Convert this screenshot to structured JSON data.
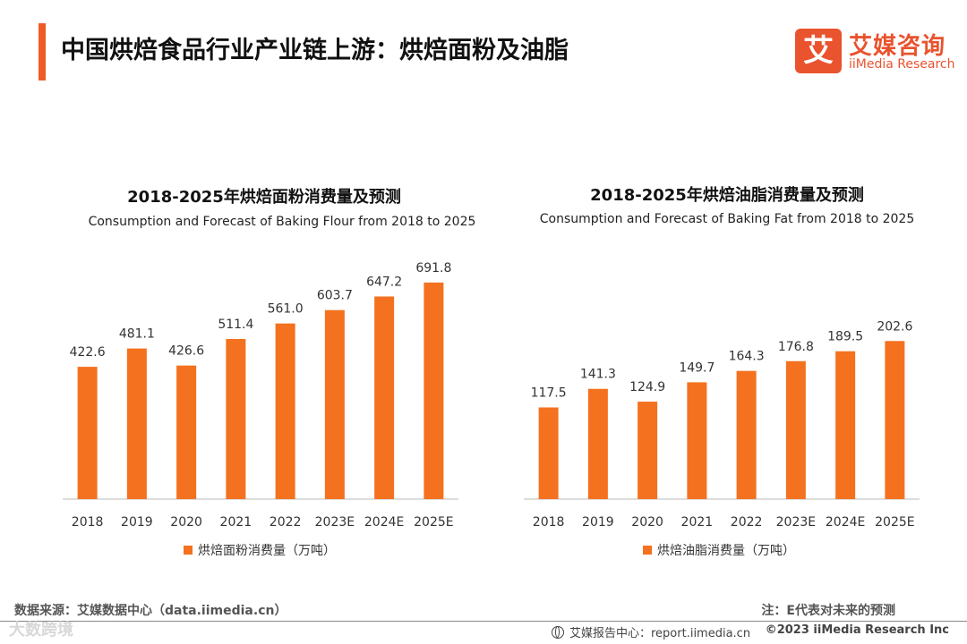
{
  "header": {
    "title": "中国烘焙食品行业产业链上游：烘焙面粉及油脂",
    "logo_mark": "艾",
    "logo_cn": "艾媒咨询",
    "logo_en": "iiMedia Research"
  },
  "colors": {
    "bar": "#f4711f",
    "accent": "#f05a24",
    "brand": "#e9532e"
  },
  "chart_data": [
    {
      "type": "bar",
      "title": "2018-2025年烘焙面粉消费量及预测",
      "subtitle": "Consumption and Forecast  of Baking Flour  from 2018 to 2025",
      "categories": [
        "2018",
        "2019",
        "2020",
        "2021",
        "2022",
        "2023E",
        "2024E",
        "2025E"
      ],
      "series": [
        {
          "name": "烘焙面粉消费量（万吨）",
          "values": [
            422.6,
            481.1,
            426.6,
            511.4,
            561.0,
            603.7,
            647.2,
            691.8
          ]
        }
      ],
      "value_labels": [
        "422.6",
        "481.1",
        "426.6",
        "511.4",
        "561.0",
        "603.7",
        "647.2",
        "691.8"
      ],
      "ylim": [
        0,
        800
      ],
      "grid": false,
      "legend_position": "bottom"
    },
    {
      "type": "bar",
      "title": "2018-2025年烘焙油脂消费量及预测",
      "subtitle": "Consumption and Forecast of Baking Fat from 2018 to 2025",
      "categories": [
        "2018",
        "2019",
        "2020",
        "2021",
        "2022",
        "2023E",
        "2024E",
        "2025E"
      ],
      "series": [
        {
          "name": "烘焙油脂消费量（万吨）",
          "values": [
            117.5,
            141.3,
            124.9,
            149.7,
            164.3,
            176.8,
            189.5,
            202.6
          ]
        }
      ],
      "value_labels": [
        "117.5",
        "141.3",
        "124.9",
        "149.7",
        "164.3",
        "176.8",
        "189.5",
        "202.6"
      ],
      "ylim": [
        0,
        235
      ],
      "grid": false,
      "legend_position": "bottom"
    }
  ],
  "footer": {
    "source": "数据来源：艾媒数据中心（data.iimedia.cn）",
    "note": "注：E代表对未来的预测",
    "report": "艾媒报告中心：report.iimedia.cn",
    "copyright": "©2023  iiMedia Research  Inc",
    "watermark": "大数跨境"
  }
}
